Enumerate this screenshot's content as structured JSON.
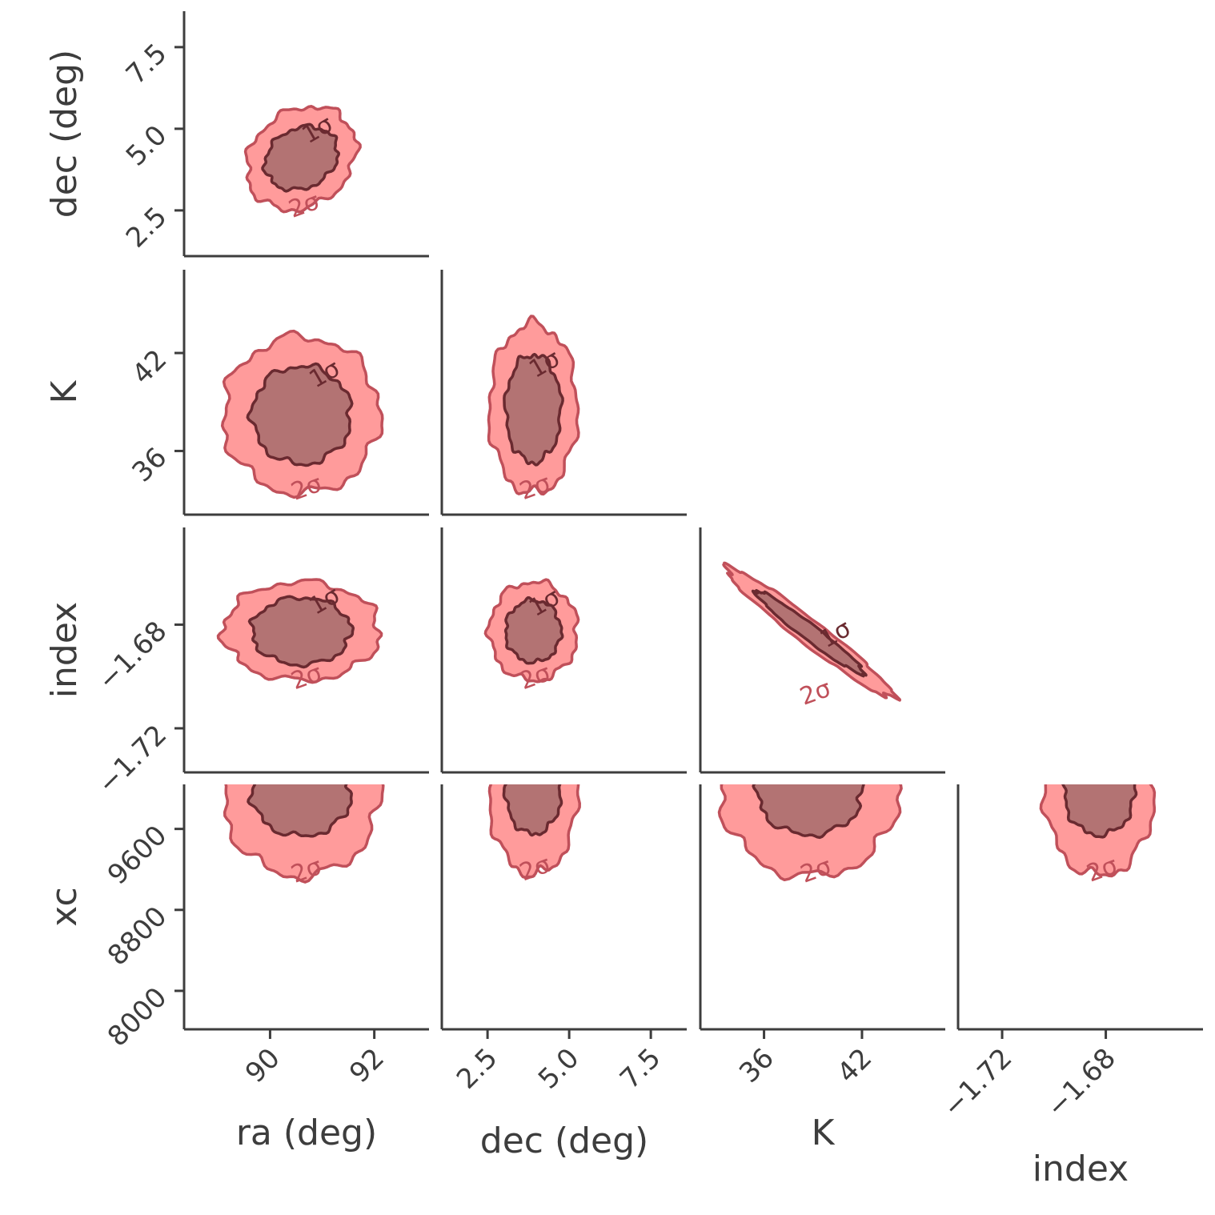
{
  "chart_data": {
    "type": "corner",
    "levels": [
      "1σ",
      "2σ"
    ],
    "colors": {
      "outer_fill": "#ff9b9b",
      "outer_line": "#c0505a",
      "inner_fill": "#b37373",
      "inner_line": "#6a2a30",
      "axis": "#3d3d3d"
    },
    "parameters": [
      {
        "name": "ra",
        "label": "ra (deg)",
        "ticks": [
          90,
          92
        ],
        "tick_labels": [
          "90",
          "92"
        ],
        "range": [
          88.35,
          93.05
        ]
      },
      {
        "name": "dec",
        "label": "dec (deg)",
        "ticks": [
          2.5,
          5.0,
          7.5
        ],
        "tick_labels": [
          "2.5",
          "5.0",
          "7.5"
        ],
        "range": [
          1.1,
          8.6
        ]
      },
      {
        "name": "K",
        "label": "K",
        "ticks": [
          36,
          42
        ],
        "tick_labels": [
          "36",
          "42"
        ],
        "range": [
          32.1,
          47.1
        ]
      },
      {
        "name": "index",
        "label": "index",
        "ticks": [
          -1.72,
          -1.68
        ],
        "tick_labels": [
          "−1.72",
          "−1.68"
        ],
        "range": [
          -1.737,
          -1.6425
        ]
      },
      {
        "name": "xc",
        "label": "xc",
        "ticks": [
          8000,
          8800,
          9600
        ],
        "tick_labels": [
          "8000",
          "8800",
          "9600"
        ],
        "range": [
          7620,
          10040
        ]
      }
    ],
    "panels": [
      {
        "x": "ra",
        "y": "dec",
        "center": [
          90.6,
          4.1
        ],
        "inner_radius": [
          0.7,
          0.95
        ],
        "outer_radius": [
          1.05,
          1.55
        ],
        "corr": 0.2
      },
      {
        "x": "ra",
        "y": "K",
        "center": [
          90.6,
          38.2
        ],
        "inner_radius": [
          0.95,
          3.0
        ],
        "outer_radius": [
          1.5,
          4.8
        ],
        "corr": 0.0
      },
      {
        "x": "dec",
        "y": "K",
        "center": [
          3.9,
          38.6
        ],
        "inner_radius": [
          0.85,
          3.3
        ],
        "outer_radius": [
          1.35,
          5.2
        ],
        "corr": 0.0
      },
      {
        "x": "ra",
        "y": "index",
        "center": [
          90.6,
          -1.6825
        ],
        "inner_radius": [
          0.95,
          0.013
        ],
        "outer_radius": [
          1.5,
          0.019
        ],
        "corr": 0.0
      },
      {
        "x": "dec",
        "y": "index",
        "center": [
          3.9,
          -1.6825
        ],
        "inner_radius": [
          0.85,
          0.012
        ],
        "outer_radius": [
          1.35,
          0.019
        ],
        "corr": 0.0
      },
      {
        "x": "K",
        "y": "index",
        "center": [
          38.8,
          -1.683
        ],
        "inner_radius": [
          3.3,
          0.016
        ],
        "outer_radius": [
          5.1,
          0.025
        ],
        "corr": -0.985
      },
      {
        "x": "ra",
        "y": "xc",
        "center": [
          90.6,
          9950
        ],
        "inner_radius": [
          0.95,
          420
        ],
        "outer_radius": [
          1.5,
          820
        ],
        "corr": 0.0
      },
      {
        "x": "dec",
        "y": "xc",
        "center": [
          3.9,
          9970
        ],
        "inner_radius": [
          0.85,
          420
        ],
        "outer_radius": [
          1.35,
          820
        ],
        "corr": 0.0
      },
      {
        "x": "K",
        "y": "xc",
        "center": [
          38.8,
          9960
        ],
        "inner_radius": [
          3.2,
          420
        ],
        "outer_radius": [
          5.4,
          830
        ],
        "corr": 0.0
      },
      {
        "x": "index",
        "y": "xc",
        "center": [
          -1.6825,
          9960
        ],
        "inner_radius": [
          0.0135,
          420
        ],
        "outer_radius": [
          0.021,
          820
        ],
        "corr": 0.0
      }
    ]
  }
}
